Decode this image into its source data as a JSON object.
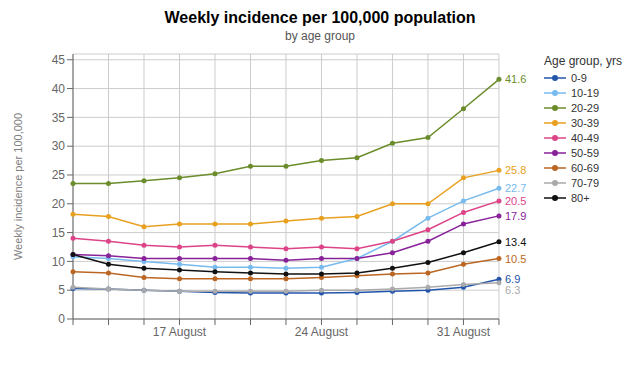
{
  "chart_data": {
    "type": "line",
    "title": "Weekly incidence per 100,000 population",
    "subtitle": "by age group",
    "y_label": "Weekly incidence per 100,000",
    "categories": [
      null,
      null,
      null,
      "17 August",
      null,
      null,
      null,
      "24 August",
      null,
      null,
      null,
      "31 August",
      null
    ],
    "ylim": [
      0,
      46
    ],
    "yticks": [
      0,
      5,
      10,
      15,
      20,
      25,
      30,
      35,
      40,
      45
    ],
    "grid": true,
    "legend": "right",
    "legend_title": "Age group, yrs",
    "marker": "circle",
    "series": [
      {
        "name": "0-9",
        "color": "#2255aa",
        "values": [
          5.3,
          5.2,
          5.0,
          4.8,
          4.6,
          4.5,
          4.5,
          4.5,
          4.6,
          4.8,
          5.0,
          5.5,
          6.9
        ]
      },
      {
        "name": "10-19",
        "color": "#77bbee",
        "values": [
          10.8,
          10.5,
          10.0,
          9.5,
          9.0,
          9.0,
          8.8,
          9.0,
          10.5,
          13.5,
          17.5,
          20.5,
          22.7
        ]
      },
      {
        "name": "20-29",
        "color": "#6b8c2a",
        "values": [
          23.5,
          23.5,
          24.0,
          24.5,
          25.2,
          26.5,
          26.5,
          27.5,
          28.0,
          30.5,
          31.5,
          36.5,
          41.6
        ]
      },
      {
        "name": "30-39",
        "color": "#e8a020",
        "values": [
          18.2,
          17.8,
          16.0,
          16.5,
          16.5,
          16.5,
          17.0,
          17.5,
          17.8,
          20.0,
          20.0,
          24.5,
          25.8
        ]
      },
      {
        "name": "40-49",
        "color": "#dd4488",
        "values": [
          14.0,
          13.5,
          12.8,
          12.5,
          12.8,
          12.5,
          12.2,
          12.5,
          12.2,
          13.5,
          15.5,
          18.5,
          20.5
        ]
      },
      {
        "name": "50-59",
        "color": "#882299",
        "values": [
          11.2,
          11.0,
          10.5,
          10.5,
          10.5,
          10.5,
          10.2,
          10.5,
          10.5,
          11.5,
          13.5,
          16.5,
          17.9
        ]
      },
      {
        "name": "60-69",
        "color": "#bb6622",
        "values": [
          8.2,
          8.0,
          7.2,
          7.0,
          7.0,
          7.0,
          7.0,
          7.2,
          7.5,
          7.8,
          8.0,
          9.5,
          10.5
        ]
      },
      {
        "name": "70-79",
        "color": "#aaaaaa",
        "values": [
          5.5,
          5.2,
          5.0,
          4.8,
          4.8,
          4.8,
          4.8,
          5.0,
          5.0,
          5.2,
          5.5,
          6.0,
          6.3
        ]
      },
      {
        "name": "80+",
        "color": "#111111",
        "values": [
          11.2,
          9.5,
          8.8,
          8.5,
          8.2,
          8.0,
          7.8,
          7.8,
          8.0,
          8.8,
          9.8,
          11.5,
          13.4
        ]
      }
    ],
    "annotations": [
      {
        "series": "0-9",
        "text": "6.9",
        "color": "#2255aa"
      },
      {
        "series": "10-19",
        "text": "22.7",
        "color": "#77bbee"
      },
      {
        "series": "20-29",
        "text": "41.6",
        "color": "#6b8c2a"
      },
      {
        "series": "30-39",
        "text": "25.8",
        "color": "#e8a020"
      },
      {
        "series": "40-49",
        "text": "20.5",
        "color": "#dd4488"
      },
      {
        "series": "50-59",
        "text": "17.9",
        "color": "#882299"
      },
      {
        "series": "60-69",
        "text": "10.5",
        "color": "#bb6622"
      },
      {
        "series": "70-79",
        "text": "6.3",
        "color": "#aaaaaa"
      },
      {
        "series": "80+",
        "text": "13.4",
        "color": "#111111"
      }
    ]
  }
}
